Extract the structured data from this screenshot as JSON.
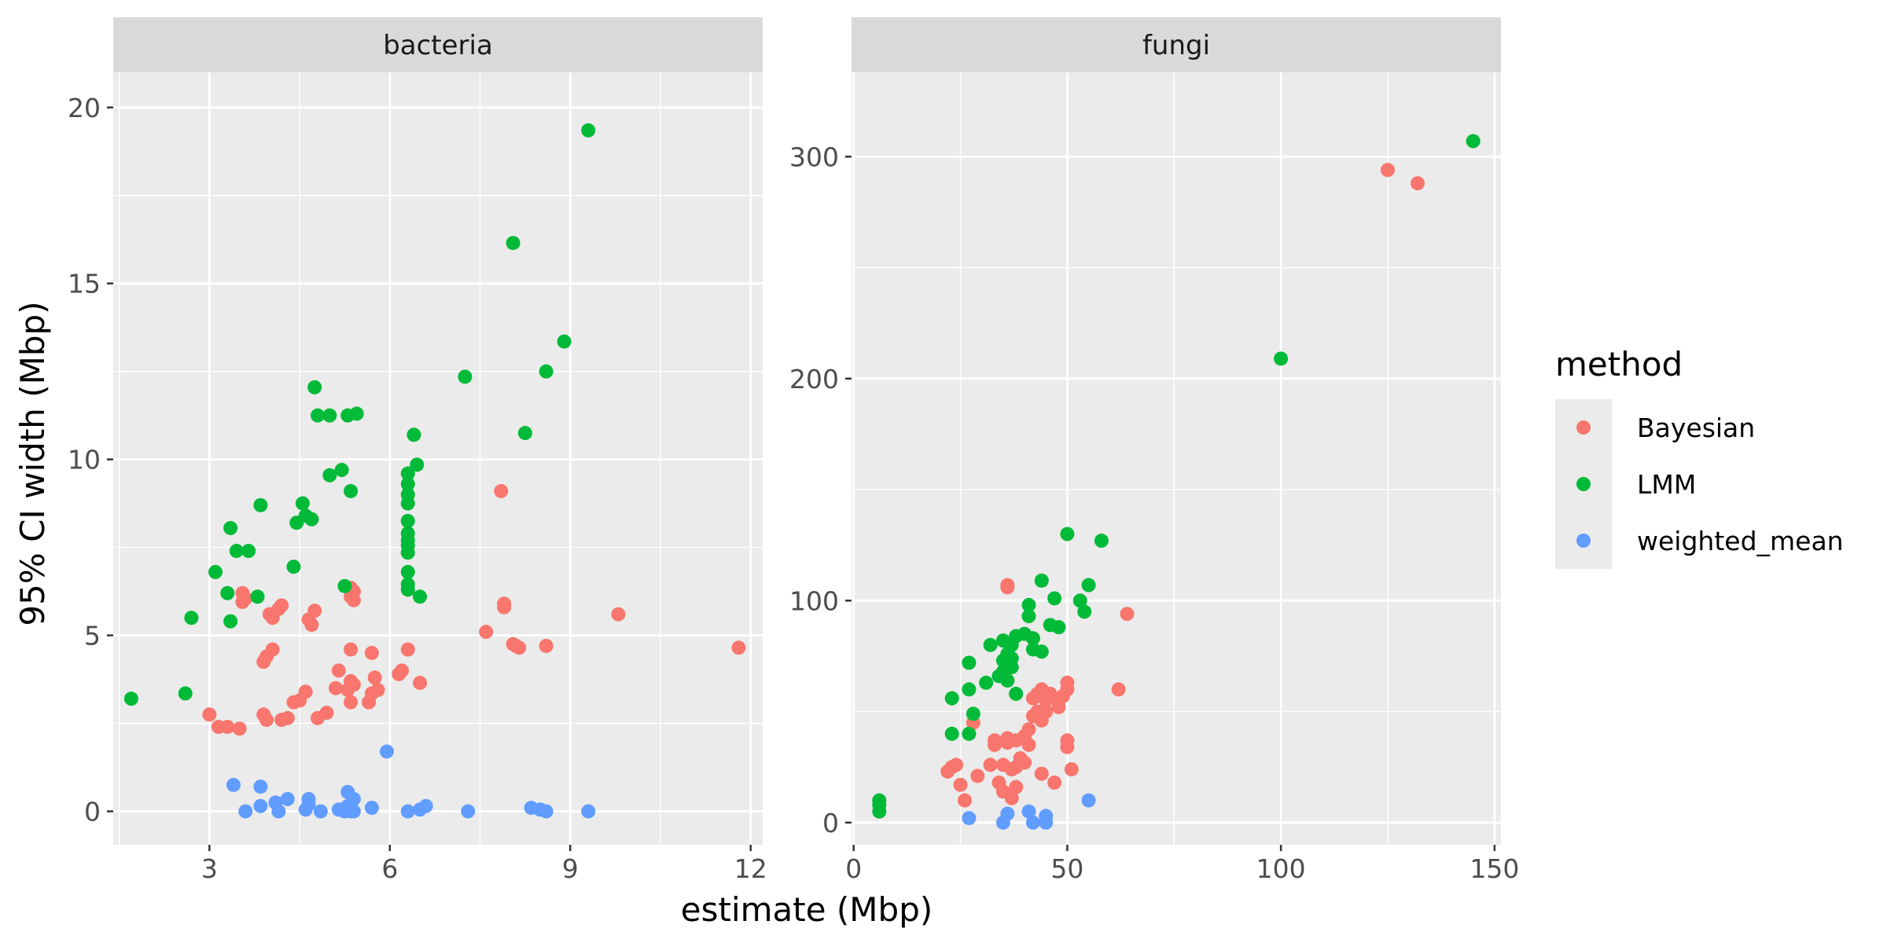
{
  "chart_data": {
    "type": "scatter",
    "xlabel": "estimate (Mbp)",
    "ylabel": "95% CI width (Mbp)",
    "legend": {
      "title": "method",
      "position": "right",
      "entries": [
        {
          "name": "Bayesian",
          "color": "#F8766D"
        },
        {
          "name": "LMM",
          "color": "#00BA38"
        },
        {
          "name": "weighted_mean",
          "color": "#619CFF"
        }
      ]
    },
    "grid": true,
    "panels": [
      {
        "strip": "bacteria",
        "xlim": [
          1.4,
          12.2
        ],
        "ylim": [
          -0.95,
          21.0
        ],
        "xticks": [
          3,
          6,
          9,
          12
        ],
        "yticks": [
          0,
          5,
          10,
          15,
          20
        ],
        "series": [
          {
            "name": "Bayesian",
            "color": "#F8766D",
            "points": [
              [
                3.0,
                2.75
              ],
              [
                3.15,
                2.4
              ],
              [
                3.3,
                2.4
              ],
              [
                3.5,
                2.35
              ],
              [
                3.55,
                6.2
              ],
              [
                3.6,
                6.05
              ],
              [
                3.55,
                5.95
              ],
              [
                3.9,
                2.75
              ],
              [
                3.95,
                2.6
              ],
              [
                3.9,
                4.25
              ],
              [
                3.95,
                4.4
              ],
              [
                4.05,
                4.6
              ],
              [
                4.0,
                5.6
              ],
              [
                4.05,
                5.5
              ],
              [
                4.15,
                5.75
              ],
              [
                4.2,
                5.85
              ],
              [
                4.2,
                2.6
              ],
              [
                4.3,
                2.65
              ],
              [
                4.4,
                3.1
              ],
              [
                4.5,
                3.15
              ],
              [
                4.6,
                3.4
              ],
              [
                4.65,
                5.45
              ],
              [
                4.7,
                5.3
              ],
              [
                4.75,
                5.7
              ],
              [
                4.8,
                2.65
              ],
              [
                4.95,
                2.8
              ],
              [
                5.1,
                3.5
              ],
              [
                5.15,
                4.0
              ],
              [
                5.3,
                3.45
              ],
              [
                5.35,
                3.7
              ],
              [
                5.35,
                6.35
              ],
              [
                5.35,
                6.1
              ],
              [
                5.4,
                6.0
              ],
              [
                5.4,
                6.25
              ],
              [
                5.35,
                4.6
              ],
              [
                5.4,
                3.6
              ],
              [
                5.35,
                3.1
              ],
              [
                5.65,
                3.1
              ],
              [
                5.7,
                3.35
              ],
              [
                5.7,
                4.5
              ],
              [
                5.75,
                3.8
              ],
              [
                5.8,
                3.45
              ],
              [
                6.15,
                3.9
              ],
              [
                6.2,
                4.0
              ],
              [
                6.3,
                4.6
              ],
              [
                6.5,
                3.65
              ],
              [
                7.6,
                5.1
              ],
              [
                7.85,
                9.1
              ],
              [
                7.9,
                5.8
              ],
              [
                7.9,
                5.9
              ],
              [
                8.05,
                4.75
              ],
              [
                8.1,
                4.7
              ],
              [
                8.15,
                4.65
              ],
              [
                8.6,
                4.7
              ],
              [
                9.8,
                5.6
              ],
              [
                11.8,
                4.65
              ]
            ]
          },
          {
            "name": "LMM",
            "color": "#00BA38",
            "points": [
              [
                1.7,
                3.2
              ],
              [
                2.6,
                3.35
              ],
              [
                2.7,
                5.5
              ],
              [
                3.1,
                6.8
              ],
              [
                3.3,
                6.2
              ],
              [
                3.35,
                5.4
              ],
              [
                3.35,
                8.05
              ],
              [
                3.45,
                7.4
              ],
              [
                3.65,
                7.4
              ],
              [
                3.8,
                6.1
              ],
              [
                3.85,
                8.7
              ],
              [
                4.4,
                6.95
              ],
              [
                4.45,
                8.2
              ],
              [
                4.55,
                8.75
              ],
              [
                4.6,
                8.4
              ],
              [
                4.7,
                8.3
              ],
              [
                4.75,
                12.05
              ],
              [
                4.8,
                11.25
              ],
              [
                5.0,
                11.25
              ],
              [
                5.0,
                9.55
              ],
              [
                5.2,
                9.7
              ],
              [
                5.25,
                6.4
              ],
              [
                5.3,
                11.25
              ],
              [
                5.35,
                9.1
              ],
              [
                5.45,
                11.3
              ],
              [
                6.3,
                6.3
              ],
              [
                6.3,
                6.45
              ],
              [
                6.3,
                6.8
              ],
              [
                6.3,
                7.35
              ],
              [
                6.3,
                7.55
              ],
              [
                6.3,
                7.7
              ],
              [
                6.3,
                7.9
              ],
              [
                6.3,
                8.25
              ],
              [
                6.3,
                8.75
              ],
              [
                6.3,
                9.0
              ],
              [
                6.3,
                9.3
              ],
              [
                6.3,
                9.6
              ],
              [
                6.4,
                10.7
              ],
              [
                6.45,
                9.85
              ],
              [
                6.5,
                6.1
              ],
              [
                7.25,
                12.35
              ],
              [
                8.05,
                16.15
              ],
              [
                8.25,
                10.75
              ],
              [
                8.6,
                12.5
              ],
              [
                8.9,
                13.35
              ],
              [
                9.3,
                19.35
              ]
            ]
          },
          {
            "name": "weighted_mean",
            "color": "#619CFF",
            "points": [
              [
                3.4,
                0.75
              ],
              [
                3.6,
                0.0
              ],
              [
                3.85,
                0.15
              ],
              [
                3.85,
                0.7
              ],
              [
                4.1,
                0.25
              ],
              [
                4.15,
                0.0
              ],
              [
                4.3,
                0.35
              ],
              [
                4.6,
                0.05
              ],
              [
                4.65,
                0.2
              ],
              [
                4.65,
                0.35
              ],
              [
                4.85,
                0.0
              ],
              [
                5.15,
                0.05
              ],
              [
                5.25,
                0.0
              ],
              [
                5.3,
                0.15
              ],
              [
                5.3,
                0.55
              ],
              [
                5.35,
                0.0
              ],
              [
                5.4,
                0.35
              ],
              [
                5.4,
                0.0
              ],
              [
                5.7,
                0.1
              ],
              [
                5.95,
                1.7
              ],
              [
                6.3,
                0.0
              ],
              [
                6.5,
                0.05
              ],
              [
                6.6,
                0.15
              ],
              [
                7.3,
                0.0
              ],
              [
                8.35,
                0.1
              ],
              [
                8.5,
                0.05
              ],
              [
                8.6,
                0.0
              ],
              [
                9.3,
                0.0
              ]
            ]
          }
        ]
      },
      {
        "strip": "fungi",
        "xlim": [
          -0.5,
          151.5
        ],
        "ylim": [
          -10,
          338
        ],
        "xticks": [
          0,
          50,
          100,
          150
        ],
        "yticks": [
          0,
          100,
          200,
          300
        ],
        "series": [
          {
            "name": "Bayesian",
            "color": "#F8766D",
            "points": [
              [
                22,
                23
              ],
              [
                23,
                25
              ],
              [
                24,
                26
              ],
              [
                25,
                17
              ],
              [
                26,
                10
              ],
              [
                28,
                45
              ],
              [
                29,
                21
              ],
              [
                32,
                26
              ],
              [
                33,
                35
              ],
              [
                33,
                37
              ],
              [
                34,
                18
              ],
              [
                35,
                14
              ],
              [
                35,
                26
              ],
              [
                36,
                36
              ],
              [
                36,
                38
              ],
              [
                36,
                107
              ],
              [
                36,
                106
              ],
              [
                37,
                11
              ],
              [
                37,
                24
              ],
              [
                38,
                16
              ],
              [
                38,
                25
              ],
              [
                38,
                37
              ],
              [
                39,
                29
              ],
              [
                40,
                27
              ],
              [
                40,
                39
              ],
              [
                41,
                42
              ],
              [
                41,
                35
              ],
              [
                42,
                48
              ],
              [
                42,
                56
              ],
              [
                43,
                50
              ],
              [
                43,
                58
              ],
              [
                44,
                46
              ],
              [
                44,
                22
              ],
              [
                44,
                60
              ],
              [
                45,
                55
              ],
              [
                45,
                50
              ],
              [
                46,
                58
              ],
              [
                47,
                18
              ],
              [
                48,
                55
              ],
              [
                48,
                52
              ],
              [
                49,
                57
              ],
              [
                50,
                60
              ],
              [
                50,
                63
              ],
              [
                50,
                34
              ],
              [
                50,
                37
              ],
              [
                51,
                24
              ],
              [
                62,
                60
              ],
              [
                64,
                94
              ],
              [
                125,
                294
              ],
              [
                132,
                288
              ]
            ]
          },
          {
            "name": "LMM",
            "color": "#00BA38",
            "points": [
              [
                6,
                5
              ],
              [
                6,
                8
              ],
              [
                6,
                10
              ],
              [
                23,
                56
              ],
              [
                23,
                40
              ],
              [
                27,
                60
              ],
              [
                27,
                40
              ],
              [
                27,
                72
              ],
              [
                28,
                49
              ],
              [
                31,
                63
              ],
              [
                32,
                80
              ],
              [
                34,
                66
              ],
              [
                35,
                68
              ],
              [
                35,
                73
              ],
              [
                35,
                82
              ],
              [
                36,
                64
              ],
              [
                36,
                76
              ],
              [
                37,
                70
              ],
              [
                37,
                74
              ],
              [
                37,
                80
              ],
              [
                38,
                58
              ],
              [
                38,
                84
              ],
              [
                40,
                85
              ],
              [
                41,
                93
              ],
              [
                41,
                98
              ],
              [
                42,
                78
              ],
              [
                42,
                83
              ],
              [
                44,
                77
              ],
              [
                44,
                109
              ],
              [
                46,
                89
              ],
              [
                47,
                101
              ],
              [
                48,
                88
              ],
              [
                50,
                130
              ],
              [
                53,
                100
              ],
              [
                54,
                95
              ],
              [
                55,
                107
              ],
              [
                58,
                127
              ],
              [
                100,
                209
              ],
              [
                145,
                307
              ]
            ]
          },
          {
            "name": "weighted_mean",
            "color": "#619CFF",
            "points": [
              [
                27,
                2
              ],
              [
                35,
                0
              ],
              [
                36,
                4
              ],
              [
                41,
                5
              ],
              [
                42,
                0
              ],
              [
                45,
                0
              ],
              [
                45,
                3
              ],
              [
                55,
                10
              ]
            ]
          }
        ]
      }
    ]
  }
}
